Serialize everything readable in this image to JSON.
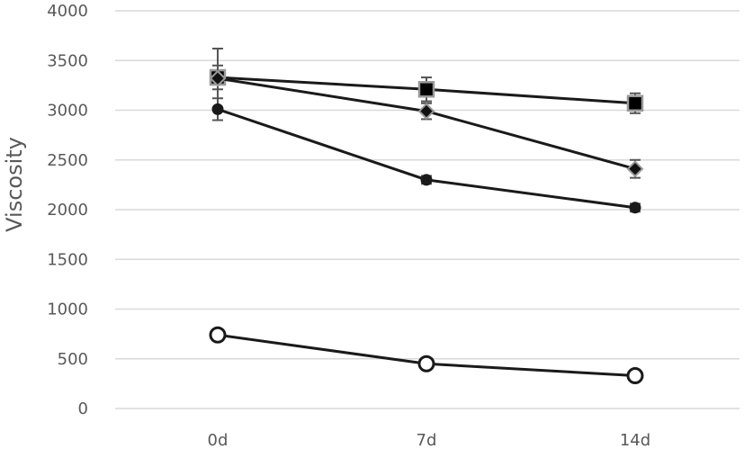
{
  "chart_data": {
    "type": "line",
    "title": "",
    "xlabel": "",
    "ylabel": "Viscosity",
    "categories": [
      "0d",
      "7d",
      "14d"
    ],
    "ylim": [
      0,
      4000
    ],
    "yticks": [
      0,
      500,
      1000,
      1500,
      2000,
      2500,
      3000,
      3500,
      4000
    ],
    "grid": true,
    "legend": "none",
    "series": [
      {
        "marker": "square",
        "values": [
          3330,
          3210,
          3070
        ],
        "errors": [
          120,
          120,
          100
        ]
      },
      {
        "marker": "diamond",
        "values": [
          3320,
          2990,
          2410
        ],
        "errors": [
          300,
          80,
          90
        ]
      },
      {
        "marker": "circle-filled",
        "values": [
          3010,
          2300,
          2020
        ],
        "errors": [
          110,
          40,
          40
        ]
      },
      {
        "marker": "circle-open",
        "values": [
          740,
          450,
          330
        ],
        "errors": [
          30,
          20,
          20
        ]
      }
    ]
  }
}
